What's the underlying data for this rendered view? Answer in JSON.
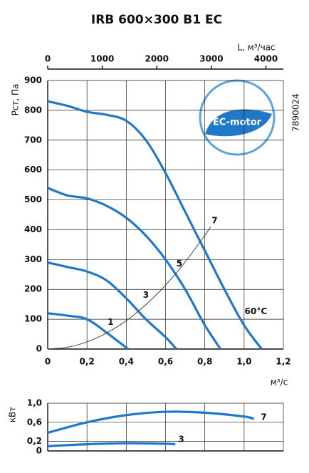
{
  "chart_data": [
    {
      "type": "line",
      "title": "IRB 600×300 B1 EC",
      "xlabel": "м³/с",
      "ylabel": "Рст, Па",
      "x2label": "L, м³/час",
      "x2lim": [
        0,
        4320
      ],
      "x2ticks": [
        0,
        1000,
        2000,
        3000,
        4000
      ],
      "logo_text": "EC-motor",
      "side_code": "7890024",
      "xlim": [
        0,
        1.2
      ],
      "ylim": [
        0,
        900
      ],
      "grid": true,
      "show_xtick_labels": true,
      "xticks": [
        0,
        {
          "value": 0.2,
          "label": "0,2"
        },
        {
          "value": 0.4,
          "label": "0,4"
        },
        {
          "value": 0.6,
          "label": "0,6"
        },
        {
          "value": 0.8,
          "label": "0,8"
        },
        {
          "value": 1.0,
          "label": "1,0"
        },
        {
          "value": 1.2,
          "label": "1,2"
        }
      ],
      "yticks": [
        0,
        100,
        200,
        300,
        400,
        500,
        600,
        700,
        800,
        900
      ],
      "series": [
        {
          "color": "#1f78c8",
          "x": [
            0,
            0.1,
            0.2,
            0.3,
            0.4,
            0.5,
            0.6,
            0.7,
            0.8,
            0.9,
            1.0,
            1.09
          ],
          "values": [
            830,
            815,
            795,
            785,
            765,
            700,
            590,
            460,
            330,
            200,
            80,
            0
          ]
        },
        {
          "color": "#1f78c8",
          "x": [
            0,
            0.1,
            0.2,
            0.3,
            0.4,
            0.5,
            0.6,
            0.7,
            0.8,
            0.88
          ],
          "values": [
            540,
            515,
            505,
            480,
            440,
            380,
            300,
            200,
            80,
            0
          ]
        },
        {
          "color": "#1f78c8",
          "x": [
            0,
            0.1,
            0.2,
            0.3,
            0.4,
            0.5,
            0.6,
            0.655
          ],
          "values": [
            290,
            275,
            260,
            230,
            170,
            100,
            40,
            0
          ]
        },
        {
          "color": "#1f78c8",
          "x": [
            0,
            0.1,
            0.2,
            0.3,
            0.35,
            0.41
          ],
          "values": [
            120,
            112,
            100,
            55,
            30,
            0
          ]
        },
        {
          "color": "#444444",
          "x": [
            0,
            0.1,
            0.2,
            0.3,
            0.4,
            0.5,
            0.6,
            0.7,
            0.8,
            0.83
          ],
          "values": [
            0,
            6,
            24,
            54,
            95,
            149,
            214,
            292,
            381,
            410
          ]
        }
      ],
      "annotations": [
        {
          "text": "7",
          "x": 0.85,
          "y": 430
        },
        {
          "text": "5",
          "x": 0.67,
          "y": 285
        },
        {
          "text": "3",
          "x": 0.5,
          "y": 180
        },
        {
          "text": "1",
          "x": 0.32,
          "y": 90
        },
        {
          "text": "60°C",
          "x": 1.06,
          "y": 125
        }
      ]
    },
    {
      "type": "line",
      "ylabel": "кВт",
      "xlim": [
        0,
        1.2
      ],
      "ylim": [
        0,
        1.0
      ],
      "grid": true,
      "show_xtick_labels": false,
      "xticks": [
        0,
        0.2,
        0.4,
        0.6,
        0.8,
        1.0,
        1.2
      ],
      "yticks": [
        0,
        {
          "value": 0.2,
          "label": "0,2"
        },
        {
          "value": 0.6,
          "label": "0,6"
        },
        {
          "value": 1.0,
          "label": "1,0"
        }
      ],
      "series": [
        {
          "color": "#1f78c8",
          "x": [
            0,
            0.2,
            0.4,
            0.6,
            0.8,
            1.0,
            1.05
          ],
          "values": [
            0.38,
            0.6,
            0.75,
            0.82,
            0.8,
            0.72,
            0.67
          ]
        },
        {
          "color": "#1f78c8",
          "x": [
            0,
            0.2,
            0.4,
            0.6,
            0.65
          ],
          "values": [
            0.1,
            0.14,
            0.16,
            0.15,
            0.14
          ]
        }
      ],
      "annotations": [
        {
          "text": "7",
          "x": 1.1,
          "y": 0.7
        },
        {
          "text": "3",
          "x": 0.68,
          "y": 0.24
        }
      ]
    }
  ]
}
